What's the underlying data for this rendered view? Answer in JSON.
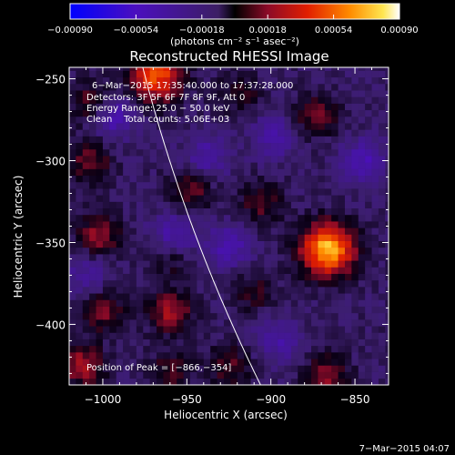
{
  "chart_data": {
    "type": "heatmap",
    "title": "Reconstructed RHESSI Image",
    "xlabel": "Heliocentric X (arcsec)",
    "ylabel": "Heliocentric Y (arcsec)",
    "xlim": [
      -1020,
      -830
    ],
    "ylim": [
      -437,
      -243
    ],
    "xticks": [
      -1000,
      -950,
      -900,
      -850
    ],
    "yticks": [
      -400,
      -350,
      -300,
      -250
    ],
    "xtick_labels": [
      "−1000",
      "−950",
      "−900",
      "−850"
    ],
    "ytick_labels": [
      "−400",
      "−350",
      "−300",
      "−250"
    ],
    "colorbar": {
      "range": [
        -0.0009,
        0.0009
      ],
      "ticks": [
        -0.0009,
        -0.00054,
        -0.00018,
        0.00018,
        0.00054,
        0.0009
      ],
      "tick_labels": [
        "−0.00090",
        "−0.00054",
        "−0.00018",
        "0.00018",
        "0.00054",
        "0.00090"
      ],
      "units": "(photons cm⁻² s⁻¹ asec⁻²)"
    },
    "annotations": [
      "6−Mar−2015 17:35:40.000 to 17:37:28.000",
      "Detectors: 3F 5F 6F 7F 8F 9F, Att 0",
      "Energy Range: 25.0 − 50.0 keV",
      "Clean    Total counts: 5.06E+03"
    ],
    "peak_label": "Position of Peak = [−866,−354]",
    "peak": [
      -866,
      -354
    ],
    "sources": [
      {
        "x": -866,
        "y": -354,
        "value": 0.0009
      },
      {
        "x": -968,
        "y": -248,
        "value": 0.00065
      },
      {
        "x": -1005,
        "y": -265,
        "value": 0.00035
      },
      {
        "x": -1008,
        "y": -300,
        "value": 0.0003
      },
      {
        "x": -1002,
        "y": -345,
        "value": 0.00035
      },
      {
        "x": -960,
        "y": -392,
        "value": 0.0004
      },
      {
        "x": -1000,
        "y": -392,
        "value": 0.0003
      },
      {
        "x": -1012,
        "y": -425,
        "value": 0.0004
      },
      {
        "x": -948,
        "y": -318,
        "value": 0.0003
      },
      {
        "x": -906,
        "y": -326,
        "value": 0.00025
      },
      {
        "x": -960,
        "y": -430,
        "value": 0.00025
      },
      {
        "x": -925,
        "y": -425,
        "value": 0.00025
      },
      {
        "x": -867,
        "y": -432,
        "value": 0.00035
      },
      {
        "x": -918,
        "y": -258,
        "value": 0.0002
      },
      {
        "x": -873,
        "y": -272,
        "value": 0.0003
      },
      {
        "x": -910,
        "y": -380,
        "value": 0.0002
      },
      {
        "x": -960,
        "y": -360,
        "value": 0.00018
      },
      {
        "x": -995,
        "y": -272,
        "value": -0.0004
      },
      {
        "x": -958,
        "y": -345,
        "value": -0.0003
      },
      {
        "x": -925,
        "y": -352,
        "value": -0.0003
      },
      {
        "x": -898,
        "y": -285,
        "value": -0.00025
      },
      {
        "x": -845,
        "y": -300,
        "value": -0.0003
      },
      {
        "x": -938,
        "y": -298,
        "value": -0.00025
      },
      {
        "x": -895,
        "y": -410,
        "value": -0.00025
      },
      {
        "x": -1010,
        "y": -370,
        "value": -0.0002
      }
    ]
  },
  "footer": {
    "timestamp": "7−Mar−2015 04:07"
  }
}
